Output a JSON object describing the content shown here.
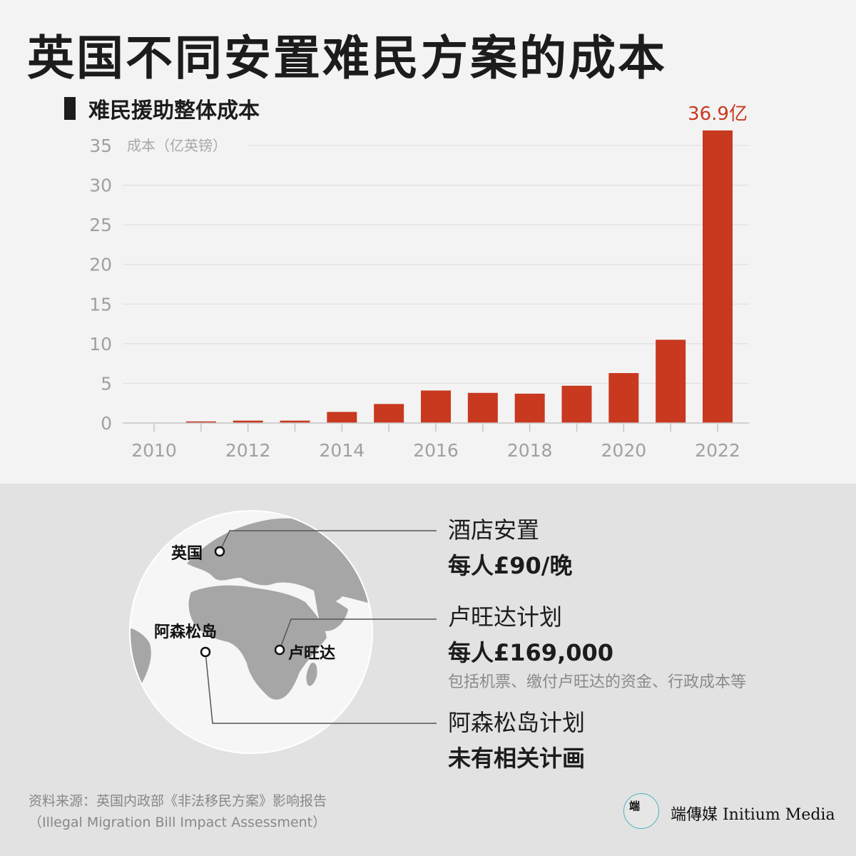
{
  "title": "英国不同安置难民方案的成本",
  "section_title": "难民援助整体成本",
  "chart_data": {
    "type": "bar",
    "ylabel": "成本（亿英镑）",
    "ylim": [
      0,
      35
    ],
    "yticks": [
      0,
      5,
      10,
      15,
      20,
      25,
      30,
      35
    ],
    "x": [
      2010,
      2011,
      2012,
      2013,
      2014,
      2015,
      2016,
      2017,
      2018,
      2019,
      2020,
      2021,
      2022
    ],
    "x_tick_labels": [
      "2010",
      "2012",
      "2014",
      "2016",
      "2018",
      "2020",
      "2022"
    ],
    "values": [
      0,
      0.2,
      0.3,
      0.3,
      1.4,
      2.4,
      4.1,
      3.8,
      3.7,
      4.7,
      6.3,
      10.5,
      36.9
    ],
    "value_labels": {
      "2022": "36.9亿"
    },
    "grid": true,
    "bar_color": "#c8391f"
  },
  "map": {
    "labels": {
      "uk": "英国",
      "ascension": "阿森松岛",
      "rwanda": "卢旺达"
    }
  },
  "options": [
    {
      "name": "酒店安置",
      "cost": "每人£90/晚",
      "note": ""
    },
    {
      "name": "卢旺达计划",
      "cost": "每人£169,000",
      "note": "包括机票、缴付卢旺达的资金、行政成本等"
    },
    {
      "name": "阿森松岛计划",
      "cost": "未有相关计画",
      "note": ""
    }
  ],
  "source": {
    "line1": "资料来源：英国内政部《非法移民方案》影响报告",
    "line2": "（Illegal Migration Bill Impact Assessment）"
  },
  "logo": {
    "glyph": "端",
    "text": "端傳媒 Initium Media"
  }
}
